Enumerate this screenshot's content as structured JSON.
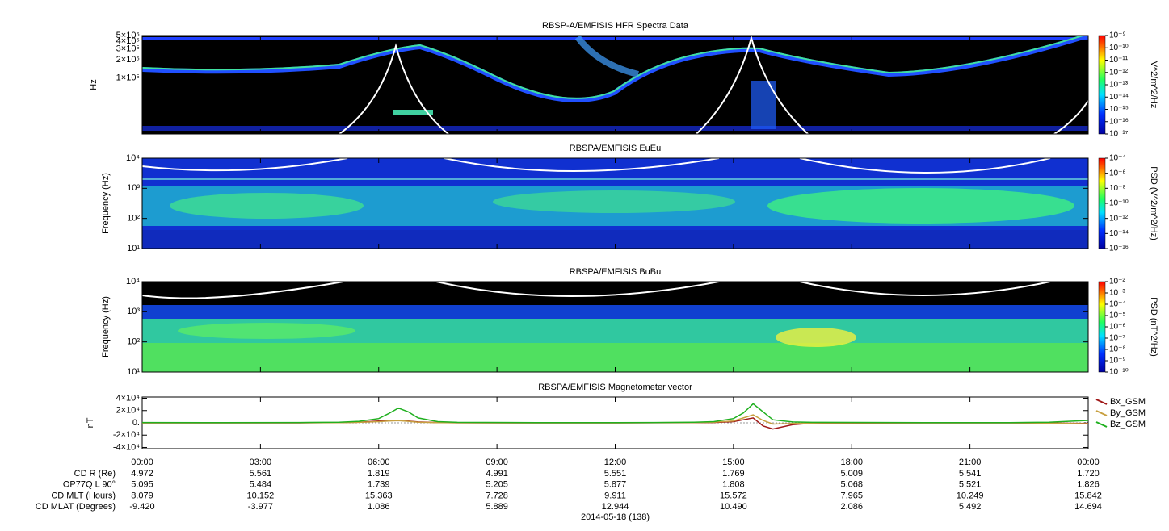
{
  "chart_data": [
    {
      "type": "spectrogram",
      "title": "RBSP-A/EMFISIS  HFR Spectra Data",
      "ylabel": "Hz",
      "log_scale": true,
      "ylim": [
        12000,
        500000
      ],
      "yticks": [
        {
          "value": 500000,
          "label": "5×10⁵"
        },
        {
          "value": 400000,
          "label": "4×10⁵"
        },
        {
          "value": 300000,
          "label": "3×10⁵"
        },
        {
          "value": 200000,
          "label": "2×10⁵"
        },
        {
          "value": 100000,
          "label": "1×10⁵"
        }
      ],
      "colorbar": {
        "label": "V^2/m^2/Hz",
        "lim": [
          1e-17,
          1e-09
        ],
        "ticks": [
          {
            "value": 1e-09,
            "label": "10⁻⁹"
          },
          {
            "value": 1e-10,
            "label": "10⁻¹⁰"
          },
          {
            "value": 1e-11,
            "label": "10⁻¹¹"
          },
          {
            "value": 1e-12,
            "label": "10⁻¹²"
          },
          {
            "value": 1e-13,
            "label": "10⁻¹³"
          },
          {
            "value": 1e-14,
            "label": "10⁻¹⁴"
          },
          {
            "value": 1e-15,
            "label": "10⁻¹⁵"
          },
          {
            "value": 1e-16,
            "label": "10⁻¹⁶"
          },
          {
            "value": 1e-17,
            "label": "10⁻¹⁷"
          }
        ]
      }
    },
    {
      "type": "spectrogram",
      "title": "RBSPA/EMFISIS  EuEu",
      "ylabel": "Frequency (Hz)",
      "log_scale": true,
      "ylim": [
        10,
        10000
      ],
      "yticks": [
        {
          "value": 10000,
          "label": "10⁴"
        },
        {
          "value": 1000,
          "label": "10³"
        },
        {
          "value": 100,
          "label": "10²"
        },
        {
          "value": 10,
          "label": "10¹"
        }
      ],
      "colorbar": {
        "label": "PSD (V^2/m^2/Hz)",
        "lim": [
          1e-16,
          0.0001
        ],
        "ticks": [
          {
            "value": 0.0001,
            "label": "10⁻⁴"
          },
          {
            "value": 1e-06,
            "label": "10⁻⁶"
          },
          {
            "value": 1e-08,
            "label": "10⁻⁸"
          },
          {
            "value": 1e-10,
            "label": "10⁻¹⁰"
          },
          {
            "value": 1e-12,
            "label": "10⁻¹²"
          },
          {
            "value": 1e-14,
            "label": "10⁻¹⁴"
          },
          {
            "value": 1e-16,
            "label": "10⁻¹⁶"
          }
        ]
      }
    },
    {
      "type": "spectrogram",
      "title": "RBSPA/EMFISIS  BuBu",
      "ylabel": "Frequency (Hz)",
      "log_scale": true,
      "ylim": [
        10,
        10000
      ],
      "yticks": [
        {
          "value": 10000,
          "label": "10⁴"
        },
        {
          "value": 1000,
          "label": "10³"
        },
        {
          "value": 100,
          "label": "10²"
        },
        {
          "value": 10,
          "label": "10¹"
        }
      ],
      "colorbar": {
        "label": "PSD (nT^2/Hz)",
        "lim": [
          1e-10,
          0.01
        ],
        "ticks": [
          {
            "value": 0.01,
            "label": "10⁻²"
          },
          {
            "value": 0.001,
            "label": "10⁻³"
          },
          {
            "value": 0.0001,
            "label": "10⁻⁴"
          },
          {
            "value": 1e-05,
            "label": "10⁻⁵"
          },
          {
            "value": 1e-06,
            "label": "10⁻⁶"
          },
          {
            "value": 1e-07,
            "label": "10⁻⁷"
          },
          {
            "value": 1e-08,
            "label": "10⁻⁸"
          },
          {
            "value": 1e-09,
            "label": "10⁻⁹"
          },
          {
            "value": 1e-10,
            "label": "10⁻¹⁰"
          }
        ]
      }
    },
    {
      "type": "line",
      "title": "RBSPA/EMFISIS  Magnetometer vector",
      "ylabel": "nT",
      "log_scale": false,
      "ylim": [
        -42000,
        42000
      ],
      "yticks": [
        {
          "value": 40000,
          "label": "4×10⁴"
        },
        {
          "value": 20000,
          "label": "2×10⁴"
        },
        {
          "value": 0,
          "label": "0."
        },
        {
          "value": -20000,
          "label": "-2×10⁴"
        },
        {
          "value": -40000,
          "label": "-4×10⁴"
        }
      ],
      "xlim": [
        0,
        24
      ],
      "xticks": [
        {
          "value": 0,
          "label": "00:00"
        },
        {
          "value": 3,
          "label": "03:00"
        },
        {
          "value": 6,
          "label": "06:00"
        },
        {
          "value": 9,
          "label": "09:00"
        },
        {
          "value": 12,
          "label": "12:00"
        },
        {
          "value": 15,
          "label": "15:00"
        },
        {
          "value": 18,
          "label": "18:00"
        },
        {
          "value": 21,
          "label": "21:00"
        },
        {
          "value": 24,
          "label": "00:00"
        }
      ],
      "x": [
        0,
        2,
        4,
        5,
        5.5,
        6,
        6.25,
        6.5,
        6.75,
        7,
        7.5,
        8,
        10,
        12,
        13,
        14,
        14.5,
        15,
        15.25,
        15.5,
        15.75,
        16,
        16.5,
        17,
        20,
        22,
        23,
        24
      ],
      "series": [
        {
          "name": "Bx_GSM",
          "color": "#a01818",
          "values": [
            0,
            0,
            0,
            500,
            1000,
            3000,
            4000,
            4000,
            3000,
            1500,
            500,
            100,
            0,
            0,
            100,
            300,
            500,
            2000,
            5000,
            8000,
            -5000,
            -10000,
            -3000,
            -500,
            0,
            0,
            -300,
            -1000
          ]
        },
        {
          "name": "By_GSM",
          "color": "#c8a040",
          "values": [
            0,
            0,
            100,
            300,
            800,
            2000,
            3000,
            3500,
            2500,
            1000,
            300,
            100,
            0,
            0,
            200,
            500,
            1000,
            3000,
            8000,
            13000,
            4000,
            -2000,
            -1000,
            -300,
            0,
            0,
            -500,
            -1500
          ]
        },
        {
          "name": "Bz_GSM",
          "color": "#20b020",
          "values": [
            500,
            300,
            500,
            1000,
            2500,
            7000,
            15000,
            24000,
            18000,
            8000,
            2000,
            800,
            300,
            300,
            500,
            1000,
            2000,
            7000,
            16000,
            31000,
            18000,
            5000,
            1500,
            800,
            300,
            300,
            1000,
            4000
          ]
        }
      ]
    }
  ],
  "ephemeris": {
    "rows": [
      {
        "label": "CD R (Re)",
        "values": [
          "4.972",
          "5.561",
          "1.819",
          "4.991",
          "5.551",
          "1.769",
          "5.009",
          "5.541",
          "1.720"
        ]
      },
      {
        "label": "OP77Q L 90°",
        "values": [
          "5.095",
          "5.484",
          "1.739",
          "5.205",
          "5.877",
          "1.808",
          "5.068",
          "5.521",
          "1.826"
        ]
      },
      {
        "label": "CD MLT (Hours)",
        "values": [
          "8.079",
          "10.152",
          "15.363",
          "7.728",
          "9.911",
          "15.572",
          "7.965",
          "10.249",
          "15.842"
        ]
      },
      {
        "label": "CD MLAT (Degrees)",
        "values": [
          "-9.420",
          "-3.977",
          "1.086",
          "5.889",
          "12.944",
          "10.490",
          "2.086",
          "5.492",
          "14.694"
        ]
      }
    ],
    "date": "2014-05-18 (138)"
  }
}
